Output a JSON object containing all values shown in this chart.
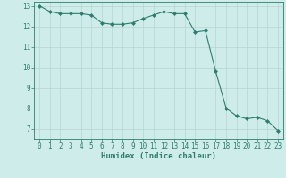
{
  "x": [
    0,
    1,
    2,
    3,
    4,
    5,
    6,
    7,
    8,
    9,
    10,
    11,
    12,
    13,
    14,
    15,
    16,
    17,
    18,
    19,
    20,
    21,
    22,
    23
  ],
  "y": [
    13.0,
    12.72,
    12.62,
    12.62,
    12.62,
    12.55,
    12.17,
    12.1,
    12.1,
    12.17,
    12.38,
    12.55,
    12.72,
    12.62,
    12.62,
    11.72,
    11.79,
    9.79,
    8.0,
    7.62,
    7.48,
    7.55,
    7.38,
    6.9
  ],
  "line_color": "#2e7d6e",
  "marker": "D",
  "marker_size": 2.0,
  "bg_color": "#ceecea",
  "grid_color": "#b8d4d2",
  "xlabel": "Humidex (Indice chaleur)",
  "ylim": [
    6.5,
    13.2
  ],
  "xlim": [
    -0.5,
    23.5
  ],
  "yticks": [
    7,
    8,
    9,
    10,
    11,
    12,
    13
  ],
  "xticks": [
    0,
    1,
    2,
    3,
    4,
    5,
    6,
    7,
    8,
    9,
    10,
    11,
    12,
    13,
    14,
    15,
    16,
    17,
    18,
    19,
    20,
    21,
    22,
    23
  ],
  "tick_color": "#2e7d6e",
  "label_fontsize": 5.5,
  "axis_fontsize": 6.5,
  "grid_linewidth": 0.5,
  "line_width": 0.8
}
